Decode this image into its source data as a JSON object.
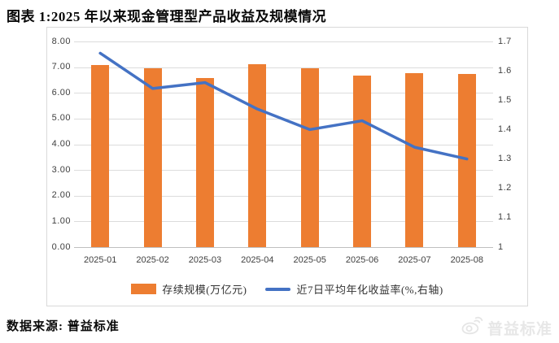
{
  "header": {
    "title": "图表 1:2025 年以来现金管理型产品收益及规模情况"
  },
  "footer": {
    "source": "数据来源: 普益标准"
  },
  "watermark": {
    "icon": "weibo-icon",
    "text": "普益标准"
  },
  "chart_data": {
    "type": "bar",
    "subtype": "combo-bar-line-dual-axis",
    "categories": [
      "2025-01",
      "2025-02",
      "2025-03",
      "2025-04",
      "2025-05",
      "2025-06",
      "2025-07",
      "2025-08"
    ],
    "series": [
      {
        "name": "存续规模(万亿元)",
        "type": "bar",
        "axis": "left",
        "color": "#ED7D31",
        "values": [
          7.07,
          6.97,
          6.58,
          7.1,
          6.97,
          6.66,
          6.76,
          6.72
        ]
      },
      {
        "name": "近7日平均年化收益率(%,右轴)",
        "type": "line",
        "axis": "right",
        "color": "#4472C4",
        "values": [
          1.66,
          1.54,
          1.56,
          1.47,
          1.4,
          1.43,
          1.34,
          1.3
        ]
      }
    ],
    "left_axis": {
      "min": 0,
      "max": 8,
      "step": 1,
      "tick_labels": [
        "8.00",
        "7.00",
        "6.00",
        "5.00",
        "4.00",
        "3.00",
        "2.00",
        "1.00",
        "0.00"
      ]
    },
    "right_axis": {
      "min": 1,
      "max": 1.7,
      "step": 0.1,
      "tick_labels": [
        "1.7",
        "1.6",
        "1.5",
        "1.4",
        "1.3",
        "1.2",
        "1.1",
        "1"
      ]
    },
    "grid": true,
    "legend_position": "bottom",
    "colors": {
      "bar": "#ED7D31",
      "line": "#4472C4",
      "gridline": "#DCDCDC",
      "axis_text": "#404040",
      "chart_border": "#D9D9D9"
    }
  }
}
